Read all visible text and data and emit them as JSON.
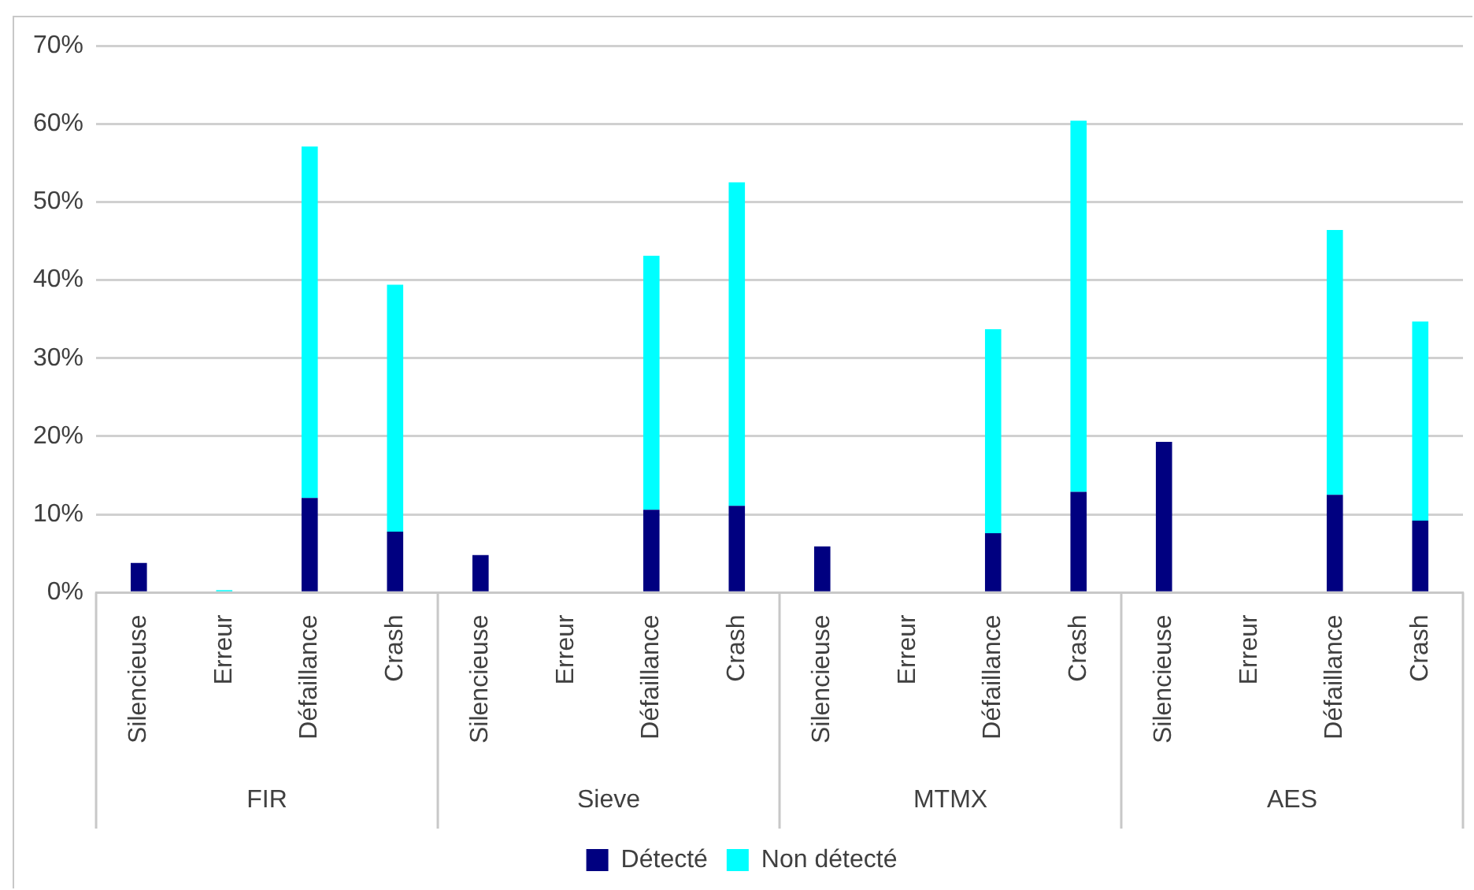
{
  "chart_data": {
    "type": "bar",
    "stacked": true,
    "categories": [
      "Silencieuse",
      "Erreur",
      "Défaillance",
      "Crash",
      "Silencieuse",
      "Erreur",
      "Défaillance",
      "Crash",
      "Silencieuse",
      "Erreur",
      "Défaillance",
      "Crash",
      "Silencieuse",
      "Erreur",
      "Défaillance",
      "Crash"
    ],
    "annotations": [
      "FIR",
      "Sieve",
      "MTMX",
      "AES"
    ],
    "series": [
      {
        "name": "Détecté",
        "color": "#000080",
        "values": [
          3.8,
          0,
          12.1,
          7.8,
          4.8,
          0,
          10.6,
          11.1,
          5.9,
          0,
          7.6,
          12.9,
          19.3,
          0,
          12.5,
          9.2
        ]
      },
      {
        "name": "Non détecté",
        "color": "#00ffff",
        "values": [
          0,
          0.3,
          45.0,
          31.6,
          0,
          0,
          32.5,
          41.4,
          0,
          0,
          26.1,
          47.5,
          0,
          0,
          33.9,
          25.5
        ]
      }
    ],
    "ylim": [
      0,
      70
    ],
    "yticks": [
      {
        "value": 0,
        "label": "0%"
      },
      {
        "value": 10,
        "label": "10%"
      },
      {
        "value": 20,
        "label": "20%"
      },
      {
        "value": 30,
        "label": "30%"
      },
      {
        "value": 40,
        "label": "40%"
      },
      {
        "value": 50,
        "label": "50%"
      },
      {
        "value": 60,
        "label": "60%"
      },
      {
        "value": 70,
        "label": "70%"
      }
    ],
    "grid": "y",
    "legend": "bottom"
  }
}
